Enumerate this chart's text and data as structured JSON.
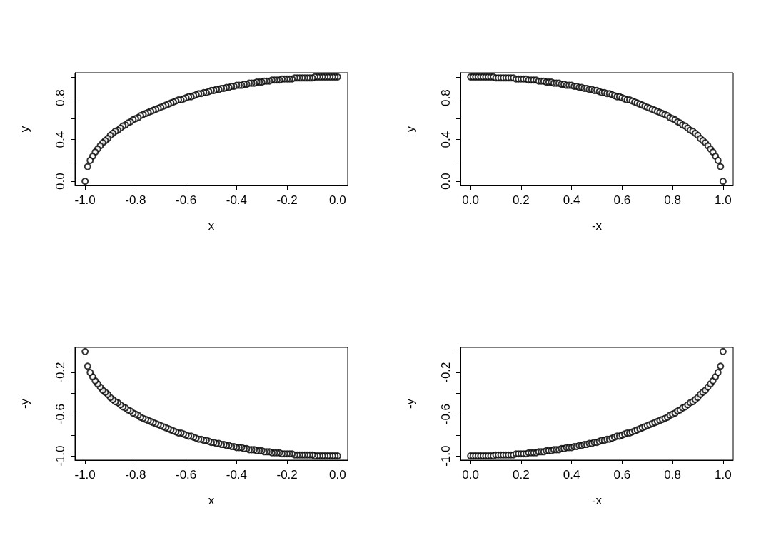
{
  "chart_data": [
    {
      "type": "scatter",
      "xlabel": "x",
      "ylabel": "y",
      "color": "#000000",
      "marker": "circle",
      "grid": false,
      "x": [
        0,
        -0.01,
        -0.02,
        -0.03,
        -0.04,
        -0.05,
        -0.06,
        -0.07,
        -0.08,
        -0.09,
        -0.1,
        -0.11,
        -0.12,
        -0.13,
        -0.14,
        -0.15,
        -0.16,
        -0.17,
        -0.18,
        -0.19,
        -0.2,
        -0.21,
        -0.22,
        -0.23,
        -0.24,
        -0.25,
        -0.26,
        -0.27,
        -0.28,
        -0.29,
        -0.3,
        -0.31,
        -0.32,
        -0.33,
        -0.34,
        -0.35,
        -0.36,
        -0.37,
        -0.38,
        -0.39,
        -0.4,
        -0.41,
        -0.42,
        -0.43,
        -0.44,
        -0.45,
        -0.46,
        -0.47,
        -0.48,
        -0.49,
        -0.5,
        -0.51,
        -0.52,
        -0.53,
        -0.54,
        -0.55,
        -0.56,
        -0.57,
        -0.58,
        -0.59,
        -0.6,
        -0.61,
        -0.62,
        -0.63,
        -0.64,
        -0.65,
        -0.66,
        -0.67,
        -0.68,
        -0.69,
        -0.7,
        -0.71,
        -0.72,
        -0.73,
        -0.74,
        -0.75,
        -0.76,
        -0.77,
        -0.78,
        -0.79,
        -0.8,
        -0.81,
        -0.82,
        -0.83,
        -0.84,
        -0.85,
        -0.86,
        -0.87,
        -0.88,
        -0.89,
        -0.9,
        -0.91,
        -0.92,
        -0.93,
        -0.94,
        -0.95,
        -0.96,
        -0.97,
        -0.98,
        -0.99,
        -1
      ],
      "values": [
        1,
        1,
        1,
        1,
        1,
        1,
        1,
        1,
        1,
        1,
        0.99,
        0.99,
        0.99,
        0.99,
        0.99,
        0.99,
        0.99,
        0.99,
        0.98,
        0.98,
        0.98,
        0.98,
        0.98,
        0.97,
        0.97,
        0.97,
        0.97,
        0.96,
        0.96,
        0.96,
        0.95,
        0.95,
        0.95,
        0.94,
        0.94,
        0.94,
        0.93,
        0.93,
        0.92,
        0.92,
        0.92,
        0.91,
        0.91,
        0.9,
        0.9,
        0.89,
        0.89,
        0.88,
        0.88,
        0.87,
        0.87,
        0.86,
        0.85,
        0.85,
        0.84,
        0.84,
        0.83,
        0.82,
        0.81,
        0.81,
        0.8,
        0.79,
        0.78,
        0.78,
        0.77,
        0.76,
        0.75,
        0.74,
        0.73,
        0.72,
        0.71,
        0.7,
        0.69,
        0.68,
        0.67,
        0.66,
        0.65,
        0.64,
        0.63,
        0.61,
        0.6,
        0.59,
        0.57,
        0.56,
        0.54,
        0.53,
        0.51,
        0.49,
        0.48,
        0.46,
        0.44,
        0.41,
        0.39,
        0.37,
        0.34,
        0.31,
        0.28,
        0.24,
        0.2,
        0.14,
        0
      ],
      "xlim": [
        -1.04,
        0.04
      ],
      "xticks": [
        {
          "value": -1,
          "label": "-1.0"
        },
        {
          "value": -0.8,
          "label": "-0.8"
        },
        {
          "value": -0.6,
          "label": "-0.6"
        },
        {
          "value": -0.4,
          "label": "-0.4"
        },
        {
          "value": -0.2,
          "label": "-0.2"
        },
        {
          "value": 0,
          "label": "0.0"
        }
      ],
      "ylim": [
        -0.04,
        1.04
      ],
      "yticks": [
        {
          "value": 0,
          "label": "0.0"
        },
        {
          "value": 0.2,
          "label": null
        },
        {
          "value": 0.4,
          "label": "0.4"
        },
        {
          "value": 0.6,
          "label": null
        },
        {
          "value": 0.8,
          "label": "0.8"
        },
        {
          "value": 1,
          "label": null
        }
      ]
    },
    {
      "type": "scatter",
      "xlabel": "-x",
      "ylabel": "y",
      "color": "#000000",
      "marker": "circle",
      "grid": false,
      "x": [
        0,
        0.01,
        0.02,
        0.03,
        0.04,
        0.05,
        0.06,
        0.07,
        0.08,
        0.09,
        0.1,
        0.11,
        0.12,
        0.13,
        0.14,
        0.15,
        0.16,
        0.17,
        0.18,
        0.19,
        0.2,
        0.21,
        0.22,
        0.23,
        0.24,
        0.25,
        0.26,
        0.27,
        0.28,
        0.29,
        0.3,
        0.31,
        0.32,
        0.33,
        0.34,
        0.35,
        0.36,
        0.37,
        0.38,
        0.39,
        0.4,
        0.41,
        0.42,
        0.43,
        0.44,
        0.45,
        0.46,
        0.47,
        0.48,
        0.49,
        0.5,
        0.51,
        0.52,
        0.53,
        0.54,
        0.55,
        0.56,
        0.57,
        0.58,
        0.59,
        0.6,
        0.61,
        0.62,
        0.63,
        0.64,
        0.65,
        0.66,
        0.67,
        0.68,
        0.69,
        0.7,
        0.71,
        0.72,
        0.73,
        0.74,
        0.75,
        0.76,
        0.77,
        0.78,
        0.79,
        0.8,
        0.81,
        0.82,
        0.83,
        0.84,
        0.85,
        0.86,
        0.87,
        0.88,
        0.89,
        0.9,
        0.91,
        0.92,
        0.93,
        0.94,
        0.95,
        0.96,
        0.97,
        0.98,
        0.99,
        1
      ],
      "values": [
        1,
        1,
        1,
        1,
        1,
        1,
        1,
        1,
        1,
        1,
        0.99,
        0.99,
        0.99,
        0.99,
        0.99,
        0.99,
        0.99,
        0.99,
        0.98,
        0.98,
        0.98,
        0.98,
        0.98,
        0.97,
        0.97,
        0.97,
        0.97,
        0.96,
        0.96,
        0.96,
        0.95,
        0.95,
        0.95,
        0.94,
        0.94,
        0.94,
        0.93,
        0.93,
        0.92,
        0.92,
        0.92,
        0.91,
        0.91,
        0.9,
        0.9,
        0.89,
        0.89,
        0.88,
        0.88,
        0.87,
        0.87,
        0.86,
        0.85,
        0.85,
        0.84,
        0.84,
        0.83,
        0.82,
        0.81,
        0.81,
        0.8,
        0.79,
        0.78,
        0.78,
        0.77,
        0.76,
        0.75,
        0.74,
        0.73,
        0.72,
        0.71,
        0.7,
        0.69,
        0.68,
        0.67,
        0.66,
        0.65,
        0.64,
        0.63,
        0.61,
        0.6,
        0.59,
        0.57,
        0.56,
        0.54,
        0.53,
        0.51,
        0.49,
        0.48,
        0.46,
        0.44,
        0.41,
        0.39,
        0.37,
        0.34,
        0.31,
        0.28,
        0.24,
        0.2,
        0.14,
        0
      ],
      "xlim": [
        -0.04,
        1.04
      ],
      "xticks": [
        {
          "value": 0,
          "label": "0.0"
        },
        {
          "value": 0.2,
          "label": "0.2"
        },
        {
          "value": 0.4,
          "label": "0.4"
        },
        {
          "value": 0.6,
          "label": "0.6"
        },
        {
          "value": 0.8,
          "label": "0.8"
        },
        {
          "value": 1,
          "label": "1.0"
        }
      ],
      "ylim": [
        -0.04,
        1.04
      ],
      "yticks": [
        {
          "value": 0,
          "label": "0.0"
        },
        {
          "value": 0.2,
          "label": null
        },
        {
          "value": 0.4,
          "label": "0.4"
        },
        {
          "value": 0.6,
          "label": null
        },
        {
          "value": 0.8,
          "label": "0.8"
        },
        {
          "value": 1,
          "label": null
        }
      ]
    },
    {
      "type": "scatter",
      "xlabel": "x",
      "ylabel": "-y",
      "color": "#000000",
      "marker": "circle",
      "grid": false,
      "x": [
        0,
        -0.01,
        -0.02,
        -0.03,
        -0.04,
        -0.05,
        -0.06,
        -0.07,
        -0.08,
        -0.09,
        -0.1,
        -0.11,
        -0.12,
        -0.13,
        -0.14,
        -0.15,
        -0.16,
        -0.17,
        -0.18,
        -0.19,
        -0.2,
        -0.21,
        -0.22,
        -0.23,
        -0.24,
        -0.25,
        -0.26,
        -0.27,
        -0.28,
        -0.29,
        -0.3,
        -0.31,
        -0.32,
        -0.33,
        -0.34,
        -0.35,
        -0.36,
        -0.37,
        -0.38,
        -0.39,
        -0.4,
        -0.41,
        -0.42,
        -0.43,
        -0.44,
        -0.45,
        -0.46,
        -0.47,
        -0.48,
        -0.49,
        -0.5,
        -0.51,
        -0.52,
        -0.53,
        -0.54,
        -0.55,
        -0.56,
        -0.57,
        -0.58,
        -0.59,
        -0.6,
        -0.61,
        -0.62,
        -0.63,
        -0.64,
        -0.65,
        -0.66,
        -0.67,
        -0.68,
        -0.69,
        -0.7,
        -0.71,
        -0.72,
        -0.73,
        -0.74,
        -0.75,
        -0.76,
        -0.77,
        -0.78,
        -0.79,
        -0.8,
        -0.81,
        -0.82,
        -0.83,
        -0.84,
        -0.85,
        -0.86,
        -0.87,
        -0.88,
        -0.89,
        -0.9,
        -0.91,
        -0.92,
        -0.93,
        -0.94,
        -0.95,
        -0.96,
        -0.97,
        -0.98,
        -0.99,
        -1
      ],
      "values": [
        -1,
        -1,
        -1,
        -1,
        -1,
        -1,
        -1,
        -1,
        -1,
        -1,
        -0.99,
        -0.99,
        -0.99,
        -0.99,
        -0.99,
        -0.99,
        -0.99,
        -0.99,
        -0.98,
        -0.98,
        -0.98,
        -0.98,
        -0.98,
        -0.97,
        -0.97,
        -0.97,
        -0.97,
        -0.96,
        -0.96,
        -0.96,
        -0.95,
        -0.95,
        -0.95,
        -0.94,
        -0.94,
        -0.94,
        -0.93,
        -0.93,
        -0.92,
        -0.92,
        -0.92,
        -0.91,
        -0.91,
        -0.9,
        -0.9,
        -0.89,
        -0.89,
        -0.88,
        -0.88,
        -0.87,
        -0.87,
        -0.86,
        -0.85,
        -0.85,
        -0.84,
        -0.84,
        -0.83,
        -0.82,
        -0.81,
        -0.81,
        -0.8,
        -0.79,
        -0.78,
        -0.78,
        -0.77,
        -0.76,
        -0.75,
        -0.74,
        -0.73,
        -0.72,
        -0.71,
        -0.7,
        -0.69,
        -0.68,
        -0.67,
        -0.66,
        -0.65,
        -0.64,
        -0.63,
        -0.61,
        -0.6,
        -0.59,
        -0.57,
        -0.56,
        -0.54,
        -0.53,
        -0.51,
        -0.49,
        -0.48,
        -0.46,
        -0.44,
        -0.41,
        -0.39,
        -0.37,
        -0.34,
        -0.31,
        -0.28,
        -0.24,
        -0.2,
        -0.14,
        0
      ],
      "xlim": [
        -1.04,
        0.04
      ],
      "xticks": [
        {
          "value": -1,
          "label": "-1.0"
        },
        {
          "value": -0.8,
          "label": "-0.8"
        },
        {
          "value": -0.6,
          "label": "-0.6"
        },
        {
          "value": -0.4,
          "label": "-0.4"
        },
        {
          "value": -0.2,
          "label": "-0.2"
        },
        {
          "value": 0,
          "label": "0.0"
        }
      ],
      "ylim": [
        -1.04,
        0.04
      ],
      "yticks": [
        {
          "value": -1,
          "label": "-1.0"
        },
        {
          "value": -0.8,
          "label": null
        },
        {
          "value": -0.6,
          "label": "-0.6"
        },
        {
          "value": -0.4,
          "label": null
        },
        {
          "value": -0.2,
          "label": "-0.2"
        },
        {
          "value": 0,
          "label": null
        }
      ]
    },
    {
      "type": "scatter",
      "xlabel": "-x",
      "ylabel": "-y",
      "color": "#000000",
      "marker": "circle",
      "grid": false,
      "x": [
        0,
        0.01,
        0.02,
        0.03,
        0.04,
        0.05,
        0.06,
        0.07,
        0.08,
        0.09,
        0.1,
        0.11,
        0.12,
        0.13,
        0.14,
        0.15,
        0.16,
        0.17,
        0.18,
        0.19,
        0.2,
        0.21,
        0.22,
        0.23,
        0.24,
        0.25,
        0.26,
        0.27,
        0.28,
        0.29,
        0.3,
        0.31,
        0.32,
        0.33,
        0.34,
        0.35,
        0.36,
        0.37,
        0.38,
        0.39,
        0.4,
        0.41,
        0.42,
        0.43,
        0.44,
        0.45,
        0.46,
        0.47,
        0.48,
        0.49,
        0.5,
        0.51,
        0.52,
        0.53,
        0.54,
        0.55,
        0.56,
        0.57,
        0.58,
        0.59,
        0.6,
        0.61,
        0.62,
        0.63,
        0.64,
        0.65,
        0.66,
        0.67,
        0.68,
        0.69,
        0.7,
        0.71,
        0.72,
        0.73,
        0.74,
        0.75,
        0.76,
        0.77,
        0.78,
        0.79,
        0.8,
        0.81,
        0.82,
        0.83,
        0.84,
        0.85,
        0.86,
        0.87,
        0.88,
        0.89,
        0.9,
        0.91,
        0.92,
        0.93,
        0.94,
        0.95,
        0.96,
        0.97,
        0.98,
        0.99,
        1
      ],
      "values": [
        -1,
        -1,
        -1,
        -1,
        -1,
        -1,
        -1,
        -1,
        -1,
        -1,
        -0.99,
        -0.99,
        -0.99,
        -0.99,
        -0.99,
        -0.99,
        -0.99,
        -0.99,
        -0.98,
        -0.98,
        -0.98,
        -0.98,
        -0.98,
        -0.97,
        -0.97,
        -0.97,
        -0.97,
        -0.96,
        -0.96,
        -0.96,
        -0.95,
        -0.95,
        -0.95,
        -0.94,
        -0.94,
        -0.94,
        -0.93,
        -0.93,
        -0.92,
        -0.92,
        -0.92,
        -0.91,
        -0.91,
        -0.9,
        -0.9,
        -0.89,
        -0.89,
        -0.88,
        -0.88,
        -0.87,
        -0.87,
        -0.86,
        -0.85,
        -0.85,
        -0.84,
        -0.84,
        -0.83,
        -0.82,
        -0.81,
        -0.81,
        -0.8,
        -0.79,
        -0.78,
        -0.78,
        -0.77,
        -0.76,
        -0.75,
        -0.74,
        -0.73,
        -0.72,
        -0.71,
        -0.7,
        -0.69,
        -0.68,
        -0.67,
        -0.66,
        -0.65,
        -0.64,
        -0.63,
        -0.61,
        -0.6,
        -0.59,
        -0.57,
        -0.56,
        -0.54,
        -0.53,
        -0.51,
        -0.49,
        -0.48,
        -0.46,
        -0.44,
        -0.41,
        -0.39,
        -0.37,
        -0.34,
        -0.31,
        -0.28,
        -0.24,
        -0.2,
        -0.14,
        0
      ],
      "xlim": [
        -0.04,
        1.04
      ],
      "xticks": [
        {
          "value": 0,
          "label": "0.0"
        },
        {
          "value": 0.2,
          "label": "0.2"
        },
        {
          "value": 0.4,
          "label": "0.4"
        },
        {
          "value": 0.6,
          "label": "0.6"
        },
        {
          "value": 0.8,
          "label": "0.8"
        },
        {
          "value": 1,
          "label": "1.0"
        }
      ],
      "ylim": [
        -1.04,
        0.04
      ],
      "yticks": [
        {
          "value": -1,
          "label": "-1.0"
        },
        {
          "value": -0.8,
          "label": null
        },
        {
          "value": -0.6,
          "label": "-0.6"
        },
        {
          "value": -0.4,
          "label": null
        },
        {
          "value": -0.2,
          "label": "-0.2"
        },
        {
          "value": 0,
          "label": null
        }
      ]
    }
  ]
}
